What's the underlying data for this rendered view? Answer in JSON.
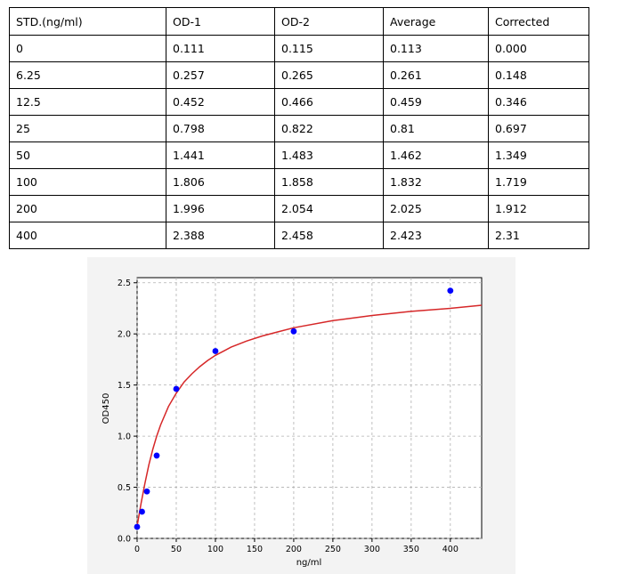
{
  "table": {
    "headers": [
      "STD.(ng/ml)",
      "OD-1",
      "OD-2",
      "Average",
      "Corrected"
    ],
    "rows": [
      [
        "0",
        "0.111",
        "0.115",
        "0.113",
        "0.000"
      ],
      [
        "6.25",
        "0.257",
        "0.265",
        "0.261",
        "0.148"
      ],
      [
        "12.5",
        "0.452",
        "0.466",
        "0.459",
        "0.346"
      ],
      [
        "25",
        "0.798",
        "0.822",
        "0.81",
        "0.697"
      ],
      [
        "50",
        "1.441",
        "1.483",
        "1.462",
        "1.349"
      ],
      [
        "100",
        "1.806",
        "1.858",
        "1.832",
        "1.719"
      ],
      [
        "200",
        "1.996",
        "2.054",
        "2.025",
        "1.912"
      ],
      [
        "400",
        "2.388",
        "2.458",
        "2.423",
        "2.31"
      ]
    ]
  },
  "chart_data": {
    "type": "scatter",
    "title": "",
    "xlabel": "ng/ml",
    "ylabel": "OD450",
    "xlim": [
      0,
      440
    ],
    "ylim": [
      0,
      2.55
    ],
    "xticks": [
      0,
      50,
      100,
      150,
      200,
      250,
      300,
      350,
      400
    ],
    "xtick_labels": [
      "0",
      "50",
      "100",
      "150",
      "200",
      "250",
      "300",
      "350",
      "400"
    ],
    "yticks": [
      0.0,
      0.5,
      1.0,
      1.5,
      2.0,
      2.5
    ],
    "ytick_labels": [
      "0.0",
      "0.5",
      "1.0",
      "1.5",
      "2.0",
      "2.5"
    ],
    "grid": true,
    "series": [
      {
        "kind": "points",
        "color": "#0000ff",
        "x": [
          0,
          6.25,
          12.5,
          25,
          50,
          100,
          200,
          400
        ],
        "y": [
          0.113,
          0.261,
          0.459,
          0.81,
          1.462,
          1.832,
          2.025,
          2.423
        ]
      },
      {
        "kind": "fit-curve",
        "color": "#d62728",
        "x": [
          0,
          5,
          10,
          15,
          20,
          25,
          30,
          40,
          50,
          60,
          70,
          80,
          90,
          100,
          120,
          140,
          160,
          180,
          200,
          250,
          300,
          350,
          400,
          440
        ],
        "y": [
          0.12,
          0.34,
          0.54,
          0.72,
          0.87,
          1.0,
          1.11,
          1.29,
          1.42,
          1.53,
          1.61,
          1.68,
          1.74,
          1.79,
          1.87,
          1.93,
          1.98,
          2.02,
          2.06,
          2.13,
          2.18,
          2.22,
          2.25,
          2.28
        ]
      }
    ]
  }
}
